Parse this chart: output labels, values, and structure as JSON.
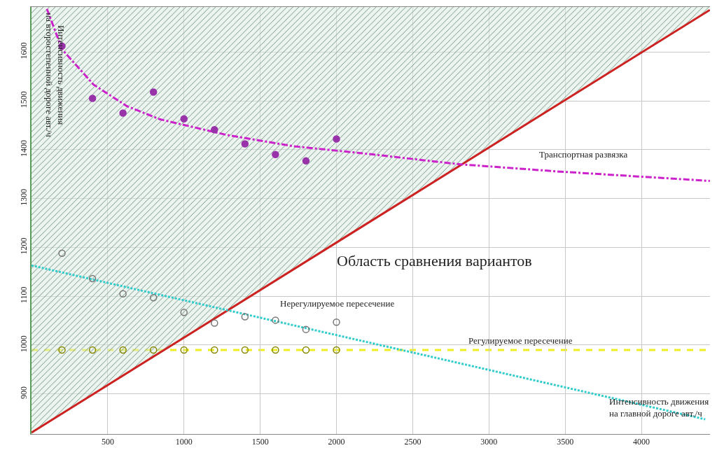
{
  "chart_data": {
    "type": "scatter",
    "xlabel": "Интенсивность движения на главной дороге авт./ч",
    "ylabel": "Интенсивность движения на второстепенной дороге авт./ч",
    "xlim": [
      0,
      4450
    ],
    "xticks": [
      500,
      1000,
      1500,
      2000,
      2500,
      3000,
      3500,
      4000
    ],
    "ylim": [
      818,
      1692
    ],
    "yticks": [
      900,
      1000,
      1100,
      1200,
      1300,
      1400,
      1500,
      1600
    ],
    "grid": true,
    "legend": false,
    "series": [
      {
        "type": "line",
        "color": "#cc2222",
        "x": [
          0,
          4449
        ],
        "values": [
          821,
          1686
        ],
        "lower": [
          821,
          1686
        ],
        "upper": [
          1692,
          1692
        ],
        "line_style": "solid"
      },
      {
        "type": "line",
        "color": "#cc22cc",
        "line_style": "dashed",
        "x": [
          101,
          201,
          319,
          407,
          626,
          844,
          1282,
          1719,
          2157,
          2813,
          3469,
          4449
        ],
        "values": [
          1688,
          1605,
          1564,
          1533,
          1489,
          1462,
          1430,
          1407,
          1393,
          1370,
          1355,
          1336
        ]
      },
      {
        "color": "#9933aa",
        "marker": "circle",
        "x": [
          200,
          400,
          600,
          800,
          1000,
          1200,
          1400,
          1600,
          1800,
          2000
        ],
        "values": [
          1612,
          1505,
          1475,
          1518,
          1463,
          1441,
          1412,
          1390,
          1377,
          1422
        ]
      },
      {
        "type": "line",
        "color": "#33cccc",
        "line_style": "dotted",
        "x": [
          0,
          4419
        ],
        "values": [
          1163,
          848
        ]
      },
      {
        "color": "#777777",
        "marker": "circle",
        "x": [
          200,
          400,
          600,
          800,
          1000,
          1200,
          1400,
          1600,
          1800,
          2000
        ],
        "values": [
          1188,
          1136,
          1105,
          1097,
          1067,
          1045,
          1058,
          1051,
          1032,
          1047
        ]
      },
      {
        "color": "#888800",
        "marker": "circle",
        "x": [
          200,
          400,
          600,
          800,
          1000,
          1200,
          1400,
          1600,
          1800,
          2000
        ],
        "values": [
          990,
          990,
          990,
          990,
          990,
          990,
          990,
          990,
          990,
          990
        ]
      }
    ],
    "ref_lines": [
      {
        "axis": "y",
        "value": 990,
        "label": "Регулируемое пересечение",
        "color": "#eeee22",
        "line_style": "dashed"
      }
    ],
    "annotations": [
      "Транспортная развязка",
      "Область сравнения вариантов",
      "Нерегулируемое пересечение"
    ]
  }
}
